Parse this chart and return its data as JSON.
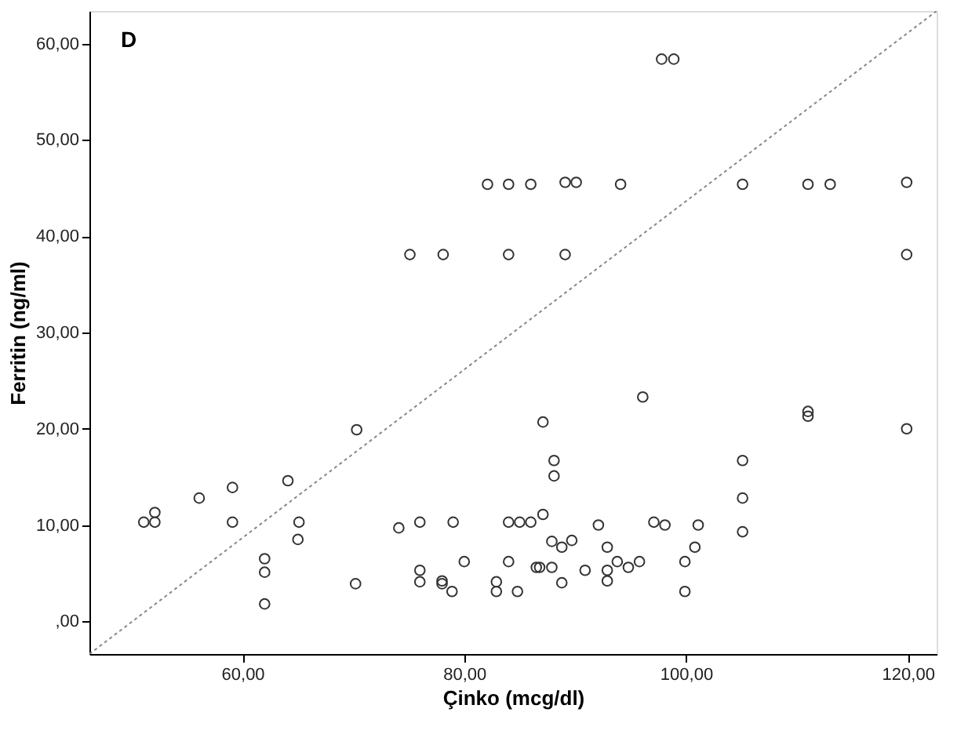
{
  "chart_data": {
    "type": "scatter",
    "xlabel": "Çinko (mcg/dl)",
    "ylabel": "Ferritin (ng/ml)",
    "annotations": [
      "D"
    ],
    "xlim": [
      46.2,
      122.6
    ],
    "ylim": [
      -3.4,
      63.4
    ],
    "xticks": [
      {
        "value": 60,
        "label": "60,00"
      },
      {
        "value": 80,
        "label": "80,00"
      },
      {
        "value": 100,
        "label": "100,00"
      },
      {
        "value": 120,
        "label": "120,00"
      }
    ],
    "yticks": [
      {
        "value": 0,
        "label": ",00"
      },
      {
        "value": 10,
        "label": "10,00"
      },
      {
        "value": 20,
        "label": "20,00"
      },
      {
        "value": 30,
        "label": "30,00"
      },
      {
        "value": 40,
        "label": "40,00"
      },
      {
        "value": 50,
        "label": "50,00"
      },
      {
        "value": 60,
        "label": "60,00"
      }
    ],
    "grid": false,
    "series": [
      {
        "color": "#333333",
        "marker": "circle",
        "x": [
          82.1,
          84.0,
          86.0,
          89.1,
          90.1,
          94.1,
          105.1,
          111.0,
          113.0,
          119.9,
          75.1,
          78.1,
          84.0,
          89.1,
          119.9,
          97.8,
          98.9,
          96.1,
          111.0,
          111.0,
          87.1,
          70.3,
          119.9,
          88.1,
          88.1,
          105.1,
          105.1,
          64.1,
          59.1,
          56.1,
          52.1,
          51.1,
          52.1,
          59.1,
          65.1,
          74.1,
          76.0,
          79.0,
          84.0,
          85.0,
          86.0,
          87.1,
          92.1,
          97.1,
          98.1,
          101.1,
          105.1,
          65.0,
          62.0,
          62.0,
          62.0,
          70.2,
          76.0,
          76.0,
          78.0,
          78.0,
          78.9,
          80.0,
          82.9,
          82.9,
          84.0,
          84.8,
          86.5,
          87.9,
          88.8,
          89.7,
          86.8,
          87.9,
          88.8,
          90.9,
          92.9,
          92.9,
          92.9,
          93.8,
          94.8,
          95.8,
          99.9,
          99.9,
          100.8
        ],
        "values": [
          45.4,
          45.4,
          45.4,
          45.6,
          45.6,
          45.4,
          45.4,
          45.4,
          45.4,
          45.6,
          38.1,
          38.1,
          38.1,
          38.1,
          38.1,
          58.4,
          58.4,
          23.3,
          21.8,
          21.3,
          20.7,
          19.9,
          20.0,
          16.7,
          15.1,
          16.7,
          12.8,
          14.6,
          13.9,
          12.8,
          11.3,
          10.3,
          10.3,
          10.3,
          10.3,
          9.7,
          10.3,
          10.3,
          10.3,
          10.3,
          10.3,
          11.1,
          10.0,
          10.3,
          10.0,
          10.0,
          9.3,
          8.5,
          6.5,
          5.1,
          1.8,
          3.9,
          5.3,
          4.1,
          4.2,
          3.9,
          3.1,
          6.2,
          4.1,
          3.1,
          6.2,
          3.1,
          5.6,
          8.3,
          7.7,
          8.4,
          5.6,
          5.6,
          4.0,
          5.3,
          7.7,
          5.3,
          4.2,
          6.2,
          5.6,
          6.2,
          6.2,
          3.1,
          7.7
        ]
      },
      {
        "color": "#888888",
        "type": "line",
        "line_style": "dotted",
        "marker": "none",
        "x": [
          46.2,
          122.6
        ],
        "values": [
          -3.4,
          63.4
        ]
      }
    ]
  }
}
